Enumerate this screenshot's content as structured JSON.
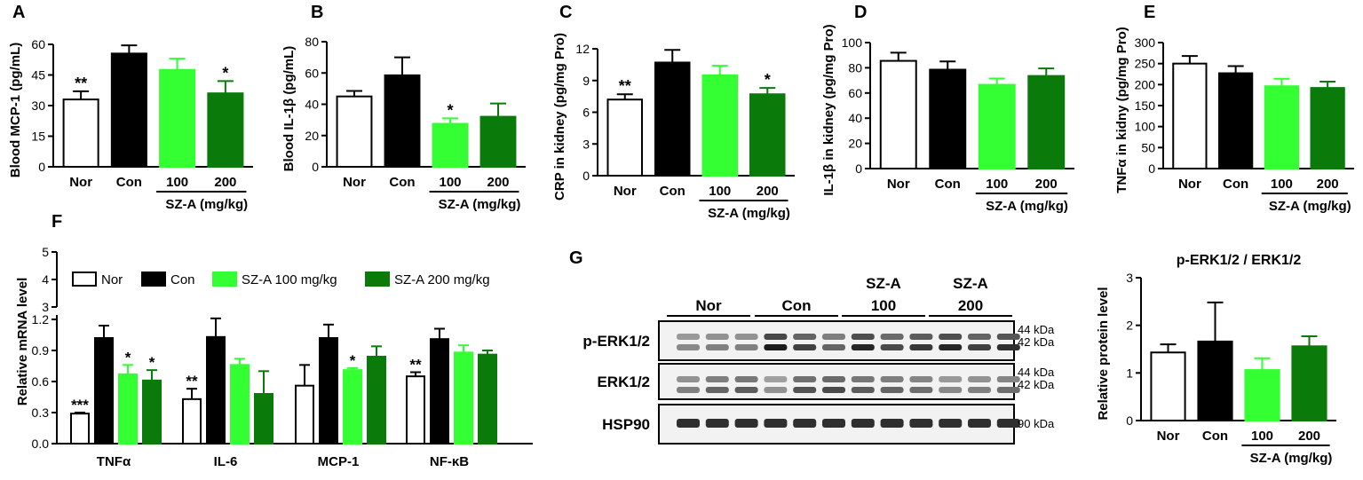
{
  "colors": {
    "nor": "#ffffff",
    "con": "#000000",
    "sza100": "#33ff33",
    "sza200": "#0a7a0a",
    "outline": "#000000"
  },
  "chart_data": [
    {
      "panel": "A",
      "type": "bar",
      "ylabel": "Blood MCP-1 (pg/mL)",
      "categories": [
        "Nor",
        "Con",
        "100",
        "200"
      ],
      "group_label": "SZ-A (mg/kg)",
      "ylim": [
        0,
        60
      ],
      "yticks": [
        0,
        15,
        30,
        45,
        60
      ],
      "values": [
        33,
        55.5,
        47.5,
        36
      ],
      "errors": [
        4,
        4,
        5.5,
        6
      ],
      "stars": [
        "**",
        "",
        "",
        "*"
      ]
    },
    {
      "panel": "B",
      "type": "bar",
      "ylabel": "Blood IL-1β (pg/mL)",
      "categories": [
        "Nor",
        "Con",
        "100",
        "200"
      ],
      "group_label": "SZ-A (mg/kg)",
      "ylim": [
        0,
        80
      ],
      "yticks": [
        0,
        20,
        40,
        60,
        80
      ],
      "values": [
        45,
        58.5,
        27.5,
        32
      ],
      "errors": [
        3.5,
        11.5,
        3.5,
        8.5
      ],
      "stars": [
        "",
        "",
        "*",
        ""
      ]
    },
    {
      "panel": "C",
      "type": "bar",
      "ylabel": "CRP in kidney (pg/mg Pro)",
      "categories": [
        "Nor",
        "Con",
        "100",
        "200"
      ],
      "group_label": "SZ-A (mg/kg)",
      "ylim": [
        0,
        12
      ],
      "yticks": [
        0,
        3,
        6,
        9,
        12
      ],
      "values": [
        7.2,
        10.7,
        9.5,
        7.7
      ],
      "errors": [
        0.5,
        1.2,
        0.9,
        0.6
      ],
      "stars": [
        "**",
        "",
        "",
        "*"
      ]
    },
    {
      "panel": "D",
      "type": "bar",
      "ylabel": "IL-1β in kidney (pg/mg Pro)",
      "categories": [
        "Nor",
        "Con",
        "100",
        "200"
      ],
      "group_label": "SZ-A (mg/kg)",
      "ylim": [
        0,
        100
      ],
      "yticks": [
        0,
        20,
        40,
        60,
        80,
        100
      ],
      "values": [
        85.5,
        78.5,
        66.5,
        73.5
      ],
      "errors": [
        6.5,
        6.5,
        5,
        6
      ],
      "stars": [
        "",
        "",
        "",
        ""
      ]
    },
    {
      "panel": "E",
      "type": "bar",
      "ylabel": "TNFα in kidny (pg/mg Pro)",
      "categories": [
        "Nor",
        "Con",
        "100",
        "200"
      ],
      "group_label": "SZ-A (mg/kg)",
      "ylim": [
        0,
        300
      ],
      "yticks": [
        0,
        50,
        100,
        150,
        200,
        250,
        300
      ],
      "values": [
        250,
        227,
        196,
        192
      ],
      "errors": [
        18,
        17,
        18,
        15
      ],
      "stars": [
        "",
        "",
        "",
        ""
      ]
    },
    {
      "panel": "F",
      "type": "bar",
      "ylabel": "Relative mRNA level",
      "categories": [
        "TNFα",
        "IL-6",
        "MCP-1",
        "NF-κB"
      ],
      "ylim": [
        0,
        1.2
      ],
      "yticks": [
        0.0,
        0.3,
        0.6,
        0.9,
        1.2
      ],
      "upper_ticks": [
        3,
        4,
        5
      ],
      "series": [
        {
          "name": "Nor",
          "values": [
            0.29,
            0.43,
            0.56,
            0.65
          ],
          "errors": [
            0.01,
            0.1,
            0.2,
            0.04
          ],
          "stars": [
            "***",
            "**",
            "",
            "**"
          ]
        },
        {
          "name": "Con",
          "values": [
            1.02,
            1.03,
            1.02,
            1.01
          ],
          "errors": [
            0.12,
            0.18,
            0.13,
            0.1
          ],
          "stars": [
            "",
            "",
            "",
            ""
          ]
        },
        {
          "name": "SZ-A 100 mg/kg",
          "values": [
            0.67,
            0.76,
            0.71,
            0.88
          ],
          "errors": [
            0.09,
            0.06,
            0.02,
            0.07
          ],
          "stars": [
            "*",
            "",
            "*",
            ""
          ]
        },
        {
          "name": "SZ-A 200 mg/kg",
          "values": [
            0.61,
            0.48,
            0.84,
            0.86
          ],
          "errors": [
            0.1,
            0.22,
            0.1,
            0.04
          ],
          "stars": [
            "*",
            "",
            "",
            ""
          ]
        }
      ]
    },
    {
      "panel": "G",
      "type": "bar",
      "title": "p-ERK1/2 / ERK1/2",
      "ylabel": "Relative protein level",
      "categories": [
        "Nor",
        "Con",
        "100",
        "200"
      ],
      "group_label": "SZ-A (mg/kg)",
      "ylim": [
        0,
        3
      ],
      "yticks": [
        0,
        1,
        2,
        3
      ],
      "values": [
        1.43,
        1.66,
        1.06,
        1.56
      ],
      "errors": [
        0.17,
        0.82,
        0.25,
        0.21
      ],
      "stars": [
        "",
        "",
        "",
        ""
      ]
    }
  ],
  "blot": {
    "panel": "G",
    "groups": [
      "Nor",
      "Con",
      "SZ-A\n100",
      "SZ-A\n200"
    ],
    "rows": [
      {
        "label": "p-ERK1/2",
        "kda": [
          "44 kDa",
          "42 kDa"
        ]
      },
      {
        "label": "ERK1/2",
        "kda": [
          "44 kDa",
          "42 kDa"
        ]
      },
      {
        "label": "HSP90",
        "kda": [
          "90 kDa"
        ]
      }
    ]
  }
}
